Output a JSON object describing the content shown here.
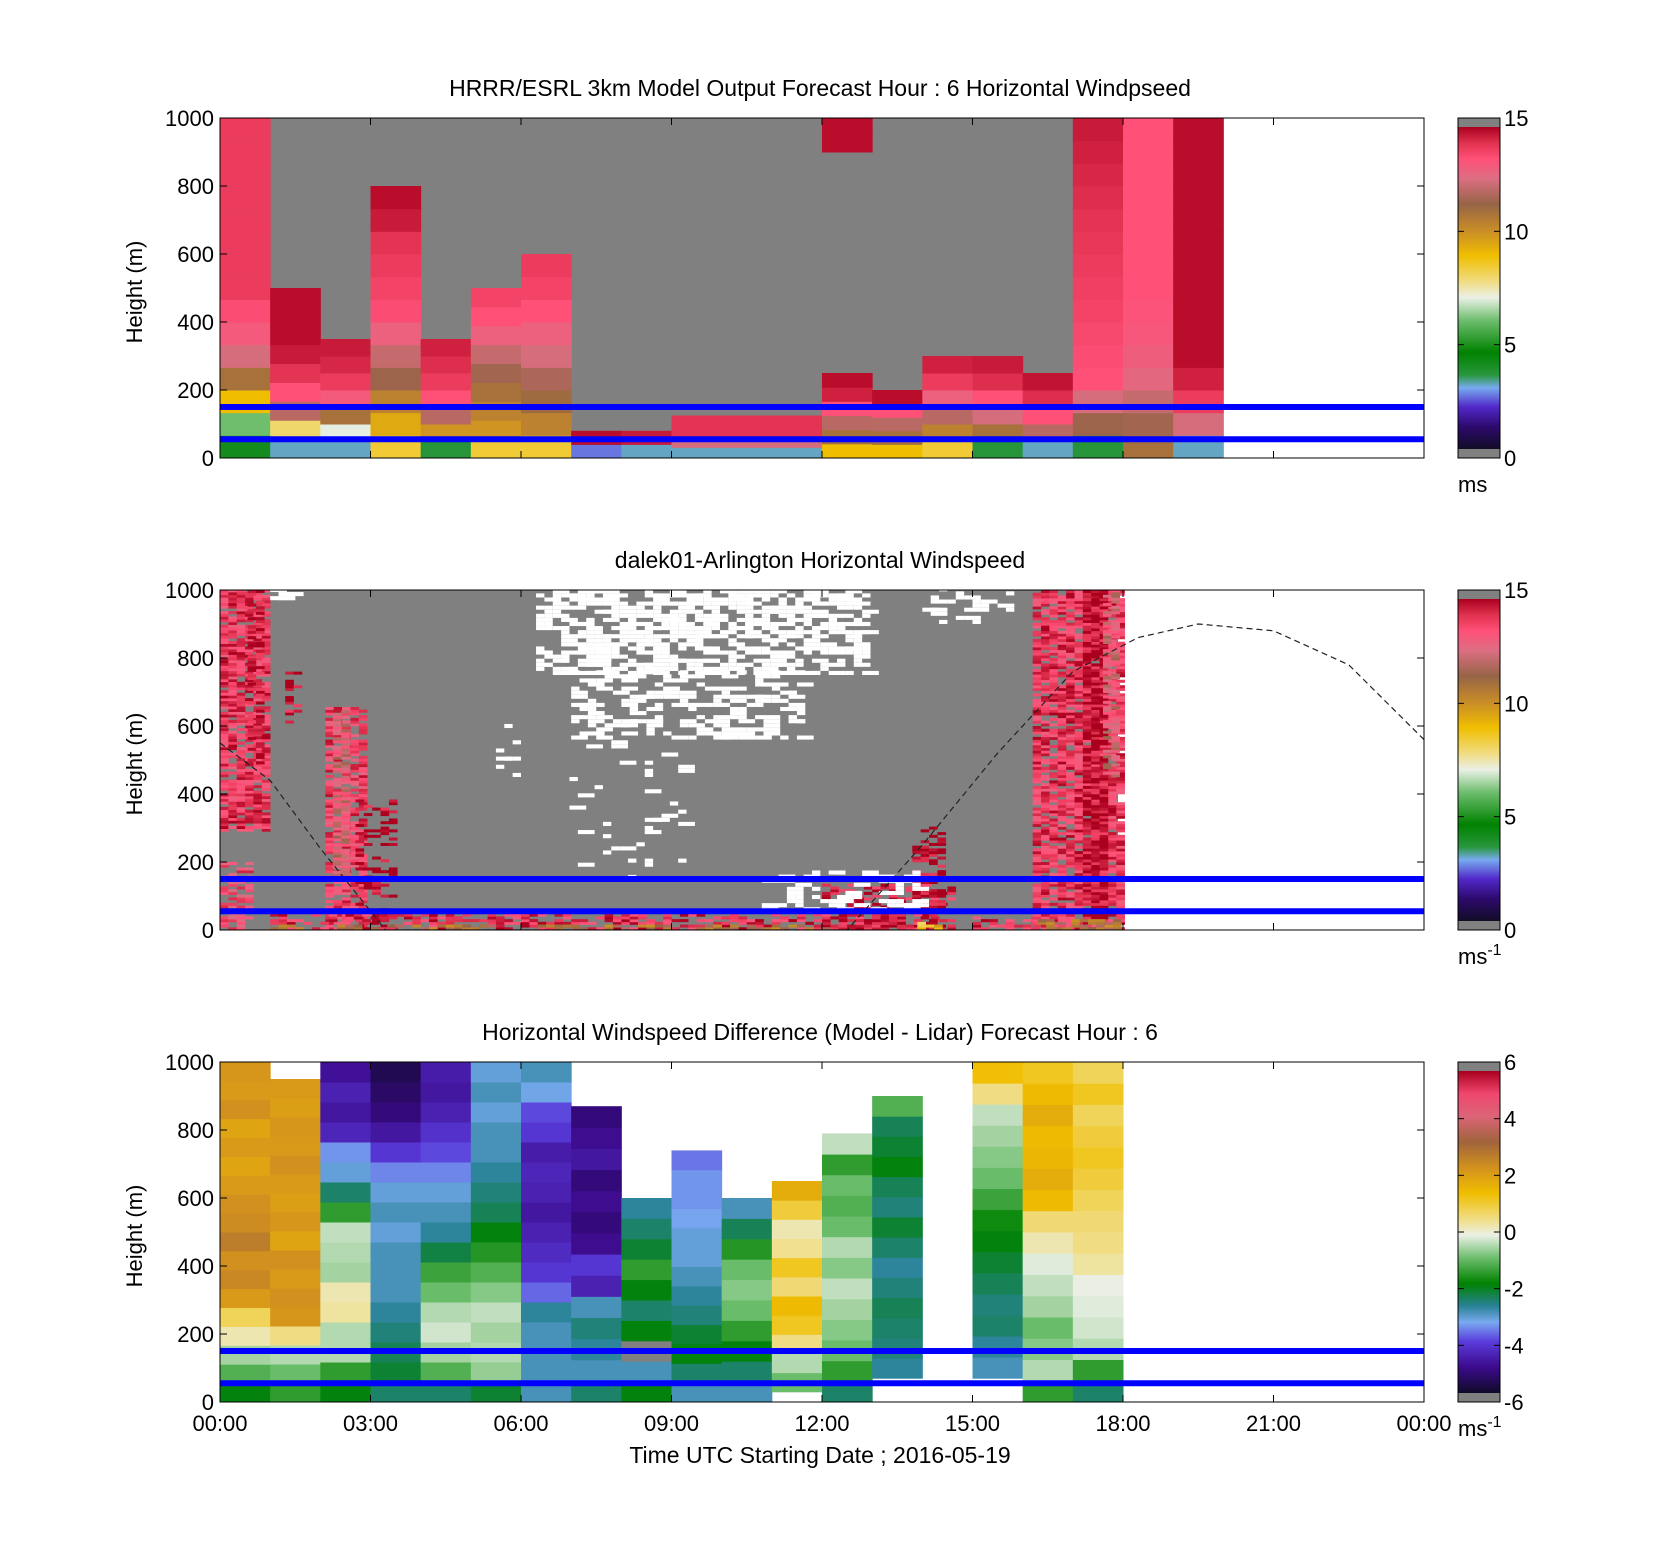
{
  "figure": {
    "xlabel": "Time UTC  Starting Date ; 2016-05-19"
  },
  "chart_data": [
    {
      "type": "heatmap",
      "title": "HRRR/ESRL 3km Model Output   Forecast Hour : 6 Horizontal Windpseed",
      "xlabel": "",
      "ylabel": "Height (m)",
      "xlim": [
        "00:00",
        "24:00"
      ],
      "ylim": [
        0,
        1000
      ],
      "xticks": [
        "00:00",
        "03:00",
        "06:00",
        "09:00",
        "12:00",
        "15:00",
        "18:00",
        "21:00",
        "00:00"
      ],
      "yticks": [
        0,
        200,
        400,
        600,
        800,
        1000
      ],
      "colorbar": {
        "range": [
          0,
          15
        ],
        "ticks": [
          0,
          5,
          10,
          15
        ],
        "unit": "ms",
        "unit_sup": "",
        "scale": "speed"
      },
      "reference_lines_m": [
        150,
        55
      ],
      "data_end_hour": 20,
      "fill_value": 20,
      "columns": [
        {
          "t0": 0,
          "t1": 1,
          "top": 1000,
          "values": [
            4,
            6,
            9,
            11,
            12.5,
            13.2,
            13.6,
            14,
            14,
            14,
            14,
            14,
            14,
            14,
            14
          ]
        },
        {
          "t0": 1,
          "t1": 2,
          "top": 500,
          "values": [
            3,
            8,
            12,
            13.5,
            14.2,
            14.6,
            14.8,
            14.8,
            14.8
          ]
        },
        {
          "t0": 2,
          "t1": 3,
          "top": 350,
          "values": [
            3,
            7,
            11,
            13.2,
            14,
            14.4,
            14.6
          ]
        },
        {
          "t0": 3,
          "t1": 4,
          "top": 800,
          "values": [
            8.5,
            9.5,
            10.5,
            11.5,
            12.2,
            13,
            13.6,
            13.8,
            14,
            14.2,
            14.6,
            14.8
          ]
        },
        {
          "t0": 4,
          "t1": 5,
          "top": 350,
          "values": [
            3.5,
            10,
            12,
            13.5,
            14,
            14.3,
            14.5
          ]
        },
        {
          "t0": 5,
          "t1": 6,
          "top": 500,
          "values": [
            8.5,
            10,
            10.5,
            11,
            11.6,
            12.2,
            13,
            13.5,
            13.8
          ]
        },
        {
          "t0": 6,
          "t1": 7,
          "top": 600,
          "values": [
            8.5,
            10.5,
            11.2,
            11.8,
            12.5,
            13,
            13.5,
            13.8,
            14
          ]
        },
        {
          "t0": 7,
          "t1": 8,
          "top": 80,
          "values": [
            2.5,
            14.8
          ]
        },
        {
          "t0": 8,
          "t1": 9,
          "top": 80,
          "values": [
            3,
            14.6
          ]
        },
        {
          "t0": 9,
          "t1": 10,
          "top": 125,
          "values": [
            3,
            12.5,
            14.2,
            14.2
          ]
        },
        {
          "t0": 10,
          "t1": 11,
          "top": 125,
          "values": [
            3,
            12.5,
            14.2,
            14.2
          ]
        },
        {
          "t0": 11,
          "t1": 12,
          "top": 125,
          "values": [
            3,
            12.5,
            14.2,
            14.2
          ]
        },
        {
          "t0": 12,
          "t1": 13,
          "top": 250,
          "values": [
            9,
            11,
            12,
            13.5,
            14.5,
            14.8
          ]
        },
        {
          "t0": 12,
          "t1": 13,
          "y0": 900,
          "top": 1000,
          "values": [
            14.8,
            14.8
          ]
        },
        {
          "t0": 13,
          "t1": 14,
          "top": 200,
          "values": [
            9,
            11,
            12,
            13.5,
            14.8
          ]
        },
        {
          "t0": 14,
          "t1": 15,
          "top": 300,
          "values": [
            8.5,
            10.5,
            12,
            13,
            14,
            14.5
          ]
        },
        {
          "t0": 15,
          "t1": 16,
          "top": 300,
          "values": [
            3.5,
            11,
            12.5,
            13.5,
            14.3,
            14.6
          ]
        },
        {
          "t0": 16,
          "t1": 17,
          "top": 250,
          "values": [
            3,
            12,
            13.5,
            14.3,
            14.7
          ]
        },
        {
          "t0": 17,
          "t1": 18,
          "top": 1000,
          "values": [
            3.5,
            11.5,
            12.5,
            13.5,
            13.6,
            13.7,
            13.8,
            13.9,
            14,
            14.1,
            14.2,
            14.3,
            14.4,
            14.5,
            14.6
          ]
        },
        {
          "t0": 18,
          "t1": 19,
          "top": 1000,
          "values": [
            11,
            11.6,
            12.2,
            12.8,
            13.1,
            13.3,
            13.4,
            13.5,
            13.5,
            13.5,
            13.5,
            13.5,
            13.5,
            13.5,
            13.5
          ]
        },
        {
          "t0": 19,
          "t1": 20,
          "top": 1000,
          "values": [
            3,
            12.5,
            14,
            14.5,
            14.8,
            14.8,
            14.8,
            14.8,
            14.8,
            14.8,
            14.8,
            14.8,
            14.8,
            14.8,
            14.8
          ]
        }
      ]
    },
    {
      "type": "heatmap",
      "title": "dalek01-Arlington  Horizontal Windspeed",
      "xlabel": "",
      "ylabel": "Height (m)",
      "xlim": [
        "00:00",
        "24:00"
      ],
      "ylim": [
        0,
        1000
      ],
      "xticks": [
        "00:00",
        "03:00",
        "06:00",
        "09:00",
        "12:00",
        "15:00",
        "18:00",
        "21:00",
        "00:00"
      ],
      "yticks": [
        0,
        200,
        400,
        600,
        800,
        1000
      ],
      "colorbar": {
        "range": [
          0,
          15
        ],
        "ticks": [
          0,
          5,
          10,
          15
        ],
        "unit": "ms",
        "unit_sup": "-1",
        "scale": "speed"
      },
      "reference_lines_m": [
        150,
        55
      ],
      "data_end_hour": 17.9,
      "fill_value": 20,
      "sun_elevation_curve": {
        "style": "dashed",
        "points": [
          [
            0,
            550
          ],
          [
            1,
            440
          ],
          [
            2,
            240
          ],
          [
            3.3,
            0
          ],
          [
            12.5,
            0
          ],
          [
            14,
            250
          ],
          [
            15.5,
            520
          ],
          [
            17,
            760
          ],
          [
            18.3,
            860
          ],
          [
            19.5,
            900
          ],
          [
            21,
            880
          ],
          [
            22.5,
            780
          ],
          [
            24,
            560
          ]
        ]
      },
      "patches": [
        {
          "t0": 0,
          "t1": 0.85,
          "y0": 290,
          "y1": 1000,
          "v": 14,
          "density": 0.85
        },
        {
          "t0": 0.55,
          "t1": 0.85,
          "y0": 480,
          "y1": 1000,
          "v": 14.8,
          "density": 0.5
        },
        {
          "t0": 0,
          "t1": 0.6,
          "y0": 0,
          "y1": 200,
          "v": 13.5,
          "density": 0.6
        },
        {
          "t0": 1.3,
          "t1": 1.5,
          "y0": 600,
          "y1": 760,
          "v": 14.6,
          "density": 0.5
        },
        {
          "t0": 2.1,
          "t1": 2.8,
          "y0": 0,
          "y1": 650,
          "v": 13.8,
          "density": 0.75
        },
        {
          "t0": 2.25,
          "t1": 2.55,
          "y0": 150,
          "y1": 640,
          "v": 12.5,
          "density": 0.8
        },
        {
          "t0": 2.7,
          "t1": 3.4,
          "y0": 0,
          "y1": 380,
          "v": 14.8,
          "density": 0.35
        },
        {
          "t0": 1.0,
          "t1": 13.5,
          "y0": 0,
          "y1": 45,
          "v": 14.2,
          "density": 0.55
        },
        {
          "t0": 1.0,
          "t1": 13.5,
          "y0": 0,
          "y1": 12,
          "v": 11,
          "density": 0.5
        },
        {
          "t0": 12.0,
          "t1": 14.5,
          "y0": 0,
          "y1": 130,
          "v": 14.5,
          "density": 0.45
        },
        {
          "t0": 13.8,
          "t1": 14.4,
          "y0": 0,
          "y1": 300,
          "v": 14.8,
          "density": 0.45
        },
        {
          "t0": 15.0,
          "t1": 16.5,
          "y0": 0,
          "y1": 40,
          "v": 14,
          "density": 0.5
        },
        {
          "t0": 16.2,
          "t1": 17.9,
          "y0": 0,
          "y1": 1000,
          "v": 14,
          "density": 0.85
        },
        {
          "t0": 17.2,
          "t1": 17.6,
          "y0": 0,
          "y1": 1000,
          "v": 14.8,
          "density": 0.9
        },
        {
          "t0": 17.6,
          "t1": 17.9,
          "y0": 450,
          "y1": 1000,
          "v": 12.5,
          "density": 0.6
        },
        {
          "t0": 16.3,
          "t1": 17.9,
          "y0": 0,
          "y1": 25,
          "v": 11,
          "density": 0.7
        },
        {
          "t0": 13.9,
          "t1": 14.3,
          "y0": 0,
          "y1": 20,
          "v": 9,
          "density": 0.6
        }
      ],
      "white_patches": [
        {
          "t0": 6.3,
          "t1": 12.9,
          "y0": 750,
          "y1": 1000,
          "density": 0.55
        },
        {
          "t0": 7.0,
          "t1": 11.5,
          "y0": 560,
          "y1": 760,
          "density": 0.35
        },
        {
          "t0": 6.8,
          "t1": 9.2,
          "y0": 150,
          "y1": 560,
          "density": 0.07
        },
        {
          "t0": 10.8,
          "t1": 13.8,
          "y0": 55,
          "y1": 170,
          "density": 0.3
        },
        {
          "t0": 14.0,
          "t1": 15.7,
          "y0": 900,
          "y1": 1000,
          "density": 0.25
        },
        {
          "t0": 1.0,
          "t1": 1.4,
          "y0": 970,
          "y1": 1000,
          "density": 0.6
        },
        {
          "t0": 5.5,
          "t1": 6.0,
          "y0": 450,
          "y1": 620,
          "density": 0.15
        }
      ]
    },
    {
      "type": "heatmap",
      "title": "Horizontal Windspeed Difference (Model - Lidar) Forecast Hour : 6",
      "xlabel": "Time UTC  Starting Date ; 2016-05-19",
      "ylabel": "Height (m)",
      "xlim": [
        "00:00",
        "24:00"
      ],
      "ylim": [
        0,
        1000
      ],
      "xticks": [
        "00:00",
        "03:00",
        "06:00",
        "09:00",
        "12:00",
        "15:00",
        "18:00",
        "21:00",
        "00:00"
      ],
      "yticks": [
        0,
        200,
        400,
        600,
        800,
        1000
      ],
      "colorbar": {
        "range": [
          -6,
          6
        ],
        "ticks": [
          -6,
          -4,
          -2,
          0,
          2,
          4,
          6
        ],
        "unit": "ms",
        "unit_sup": "-1",
        "scale": "diff"
      },
      "reference_lines_m": [
        150,
        55
      ],
      "fill_value": 20,
      "columns": [
        {
          "t0": 0,
          "t1": 1,
          "top": 1000,
          "y0": 0,
          "values": [
            -2,
            -1.2,
            -0.6,
            0.2,
            0.8,
            2.2,
            2.6,
            2.4,
            2.8,
            2.5,
            2.4,
            2.2,
            2.0,
            2.2,
            2.0,
            2.4,
            2.2,
            2.3
          ]
        },
        {
          "t0": 1,
          "t1": 2,
          "top": 950,
          "y0": 0,
          "values": [
            -1.5,
            -1,
            -0.5,
            0.5,
            2.3,
            2.4,
            2.2,
            2.4,
            2.0,
            2.3,
            2.1,
            2.2,
            2.4,
            2.2,
            2.3,
            2.1,
            2.2
          ]
        },
        {
          "t0": 2,
          "t1": 3,
          "top": 1000,
          "y0": 0,
          "values": [
            -2,
            -1.5,
            -0.5,
            -0.5,
            0.3,
            0.2,
            -0.6,
            -0.5,
            -0.4,
            -1.5,
            -2.5,
            -3.2,
            -3.5,
            -4.5,
            -4.8,
            -4.6,
            -4.9
          ]
        },
        {
          "t0": 3,
          "t1": 4,
          "top": 1000,
          "y0": 0,
          "values": [
            -2.5,
            -2.2,
            -2.4,
            -2.6,
            -2.8,
            -3,
            -3,
            -3,
            -3.2,
            -3,
            -3.2,
            -3.6,
            -4.2,
            -4.8,
            -5.2,
            -5.4,
            -5.6
          ]
        },
        {
          "t0": 4,
          "t1": 5,
          "top": 1000,
          "y0": 0,
          "values": [
            -2.5,
            -1.2,
            -0.6,
            -0.3,
            -0.5,
            -1,
            -1.4,
            -2.3,
            -2.8,
            -3,
            -3.2,
            -3.6,
            -4,
            -4.3,
            -4.6,
            -4.8,
            -4.7
          ]
        },
        {
          "t0": 5,
          "t1": 6,
          "top": 1000,
          "y0": 0,
          "values": [
            -2.2,
            -0.7,
            -0.5,
            -0.6,
            -0.4,
            -0.8,
            -1.2,
            -1.6,
            -2,
            -2.4,
            -2.6,
            -2.8,
            -3,
            -3,
            -3.2,
            -3,
            -3.2
          ]
        },
        {
          "t0": 6,
          "t1": 7,
          "top": 1000,
          "y0": 0,
          "values": [
            -3,
            -3,
            -3,
            -3,
            -2.8,
            -3.8,
            -4.2,
            -4.4,
            -4.6,
            -4.8,
            -4.6,
            -4.5,
            -4.7,
            -4.2,
            -4,
            -3.3,
            -3
          ]
        },
        {
          "t0": 7,
          "t1": 8,
          "top": 870,
          "y0": 0,
          "values": [
            -2.5,
            -3,
            -2.8,
            -2.6,
            -3,
            -4.6,
            -4.2,
            -5,
            -5.2,
            -5,
            -5.2,
            -4.8,
            -5,
            -5.2
          ]
        },
        {
          "t0": 8,
          "t1": 9,
          "top": 600,
          "y0": 0,
          "values": [
            -2,
            -3,
            20,
            -2,
            -2.5,
            -2,
            -1.5,
            -2.2,
            -2.5,
            -2.8
          ]
        },
        {
          "t0": 9,
          "t1": 10,
          "top": 740,
          "y0": 0,
          "values": [
            -3,
            -2.5,
            -2,
            -2.2,
            -2.6,
            -2.8,
            -3,
            -3.2,
            -3.2,
            -3.4,
            -3.5,
            -3.5,
            -3.7
          ]
        },
        {
          "t0": 10,
          "t1": 11,
          "top": 600,
          "y0": 0,
          "values": [
            -3,
            -2.5,
            -2,
            -1.5,
            -1,
            -0.8,
            -1,
            -1.6,
            -2.4,
            -3
          ]
        },
        {
          "t0": 11,
          "t1": 12,
          "top": 650,
          "y0": 30,
          "values": [
            -1,
            -0.5,
            0.5,
            1.2,
            1.5,
            0.6,
            1.2,
            0.4,
            0.2,
            1.0,
            1.8
          ]
        },
        {
          "t0": 12,
          "t1": 13,
          "top": 790,
          "y0": 0,
          "values": [
            -2.5,
            -1.5,
            -1,
            -0.8,
            -0.6,
            -0.4,
            -0.8,
            -0.5,
            -1,
            -1.2,
            -1,
            -1.5,
            -0.4
          ]
        },
        {
          "t0": 13,
          "t1": 14,
          "top": 900,
          "y0": 70,
          "values": [
            -2.8,
            -2.6,
            -2.5,
            -2.4,
            -2.6,
            -2.8,
            -2.5,
            -2.2,
            -2.6,
            -2.4,
            -2,
            -2.2,
            -2.4,
            -1.2
          ]
        },
        {
          "t0": 15,
          "t1": 16,
          "top": 1000,
          "y0": 70,
          "values": [
            -3,
            -2.8,
            -2.5,
            -2.6,
            -2.4,
            -2.2,
            -2,
            -1.8,
            -1.4,
            -1,
            -0.8,
            -0.6,
            -0.4,
            0.5,
            1.4
          ]
        },
        {
          "t0": 16,
          "t1": 17,
          "top": 1000,
          "y0": 0,
          "values": [
            -1.5,
            -0.5,
            -0.8,
            -1,
            -0.6,
            -0.4,
            -0.2,
            0.2,
            0.6,
            1.5,
            1.8,
            1.6,
            1.5,
            1.8,
            1.5,
            1.2
          ]
        },
        {
          "t0": 17,
          "t1": 18,
          "top": 1000,
          "y0": 0,
          "values": [
            -2.5,
            -1.5,
            -0.5,
            -0.3,
            -0.2,
            -0.1,
            0.3,
            0.5,
            0.6,
            0.8,
            1.0,
            1.2,
            1.0,
            0.8,
            1.2,
            0.8
          ]
        }
      ]
    }
  ]
}
